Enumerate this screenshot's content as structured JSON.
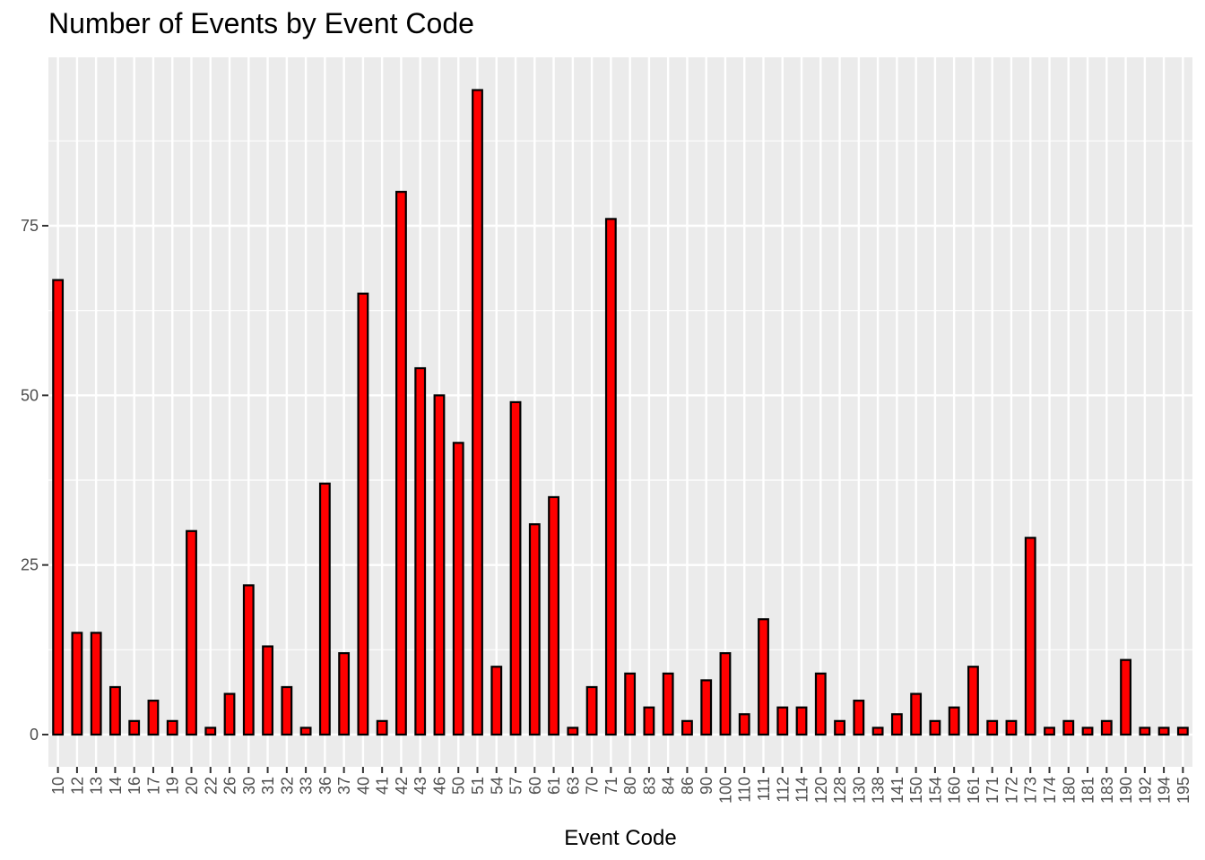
{
  "chart_data": {
    "type": "bar",
    "title": "Number of Events by Event Code",
    "xlabel": "Event Code",
    "ylabel": "",
    "ylim": [
      0,
      100
    ],
    "y_ticks": [
      0,
      25,
      50,
      75
    ],
    "grid": true,
    "bar_fill": "#ff0000",
    "bar_stroke": "#000000",
    "panel_background": "#ebebeb",
    "grid_color": "#ffffff",
    "categories": [
      "10",
      "12",
      "13",
      "14",
      "16",
      "17",
      "19",
      "20",
      "22",
      "26",
      "30",
      "31",
      "32",
      "33",
      "36",
      "37",
      "40",
      "41",
      "42",
      "43",
      "46",
      "50",
      "51",
      "54",
      "57",
      "60",
      "61",
      "63",
      "70",
      "71",
      "80",
      "83",
      "84",
      "86",
      "90",
      "100",
      "110",
      "111",
      "112",
      "114",
      "120",
      "128",
      "130",
      "138",
      "141",
      "150",
      "154",
      "160",
      "161",
      "171",
      "172",
      "173",
      "174",
      "180",
      "181",
      "183",
      "190",
      "192",
      "194",
      "195"
    ],
    "values": [
      67,
      15,
      15,
      7,
      2,
      5,
      2,
      30,
      1,
      6,
      22,
      13,
      7,
      1,
      37,
      12,
      65,
      2,
      80,
      54,
      50,
      43,
      95,
      10,
      49,
      31,
      35,
      1,
      7,
      76,
      9,
      4,
      9,
      2,
      8,
      12,
      3,
      17,
      4,
      4,
      9,
      2,
      5,
      1,
      3,
      6,
      2,
      4,
      10,
      2,
      2,
      29,
      1,
      2,
      1,
      2,
      11,
      1,
      1,
      1
    ]
  }
}
